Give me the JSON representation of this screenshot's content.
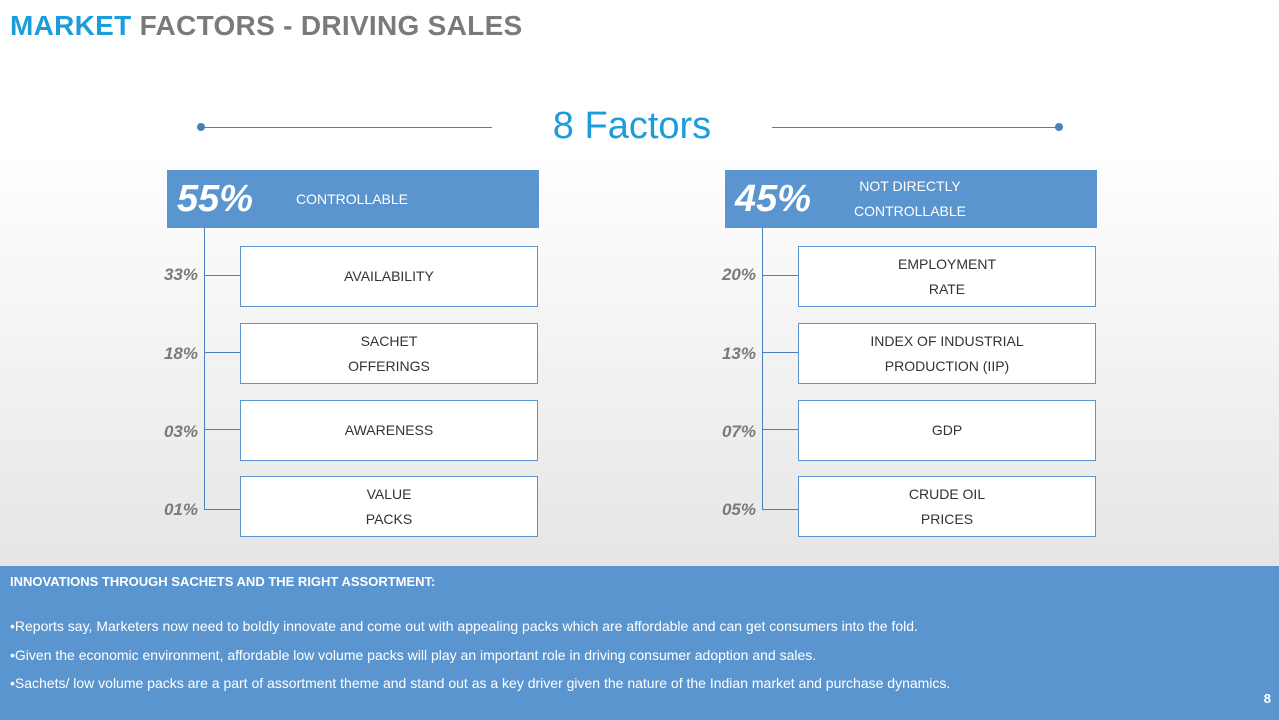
{
  "title": {
    "accent": "MARKET",
    "rest": "FACTORS - DRIVING SALES"
  },
  "factors_title": "8 Factors",
  "groups": [
    {
      "pct": "55%",
      "label": "CONTROLLABLE",
      "items": [
        {
          "pct": "33%",
          "label": "AVAILABILITY"
        },
        {
          "pct": "18%",
          "label": "SACHET\nOFFERINGS"
        },
        {
          "pct": "03%",
          "label": "AWARENESS"
        },
        {
          "pct": "01%",
          "label": "VALUE\nPACKS"
        }
      ]
    },
    {
      "pct": "45%",
      "label": "NOT DIRECTLY\nCONTROLLABLE",
      "items": [
        {
          "pct": "20%",
          "label": "EMPLOYMENT\nRATE"
        },
        {
          "pct": "13%",
          "label": "INDEX OF INDUSTRIAL\nPRODUCTION (IIP)"
        },
        {
          "pct": "07%",
          "label": "GDP"
        },
        {
          "pct": "05%",
          "label": "CRUDE OIL\nPRICES"
        }
      ]
    }
  ],
  "bottom": {
    "heading": "INNOVATIONS THROUGH SACHETS AND THE RIGHT ASSORTMENT:",
    "bullets": [
      "•Reports say, Marketers now need to boldly innovate and come out with appealing packs which are affordable and can get consumers into the fold.",
      "•Given the economic environment, affordable low volume packs will play an important role in driving consumer adoption and sales.",
      "•Sachets/ low volume packs are a part of  assortment theme and stand out as a key driver given the nature of the Indian market and purchase dynamics."
    ]
  },
  "page_number": "8"
}
